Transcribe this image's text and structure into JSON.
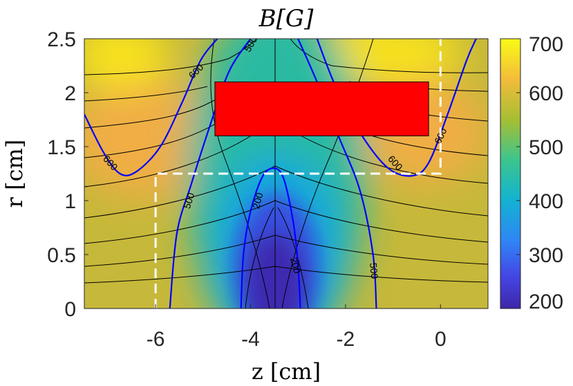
{
  "chart_data": {
    "type": "heatmap",
    "title": "B[G]",
    "xlabel": "z [cm]",
    "ylabel": "r [cm]",
    "xlim": [
      -7.5,
      1
    ],
    "ylim": [
      0,
      2.5
    ],
    "x_ticks": [
      "-6",
      "-4",
      "-2",
      "0"
    ],
    "x_tick_values": [
      -6,
      -4,
      -2,
      0
    ],
    "y_ticks": [
      "0",
      "0.5",
      "1",
      "1.5",
      "2",
      "2.5"
    ],
    "y_tick_values": [
      0,
      0.5,
      1,
      1.5,
      2,
      2.5
    ],
    "colormap": "parula",
    "colorbar": {
      "range": [
        200,
        700
      ],
      "ticks": [
        "200",
        "300",
        "400",
        "500",
        "600",
        "700"
      ],
      "tick_values": [
        200,
        300,
        400,
        500,
        600,
        700
      ]
    },
    "contours": [
      {
        "level": 200,
        "label": "200",
        "color": "#0000ff",
        "path": [
          [
            -4.2,
            0
          ],
          [
            -4.15,
            0.5
          ],
          [
            -4.0,
            0.9
          ],
          [
            -3.75,
            1.22
          ],
          [
            -3.5,
            1.3
          ],
          [
            -3.3,
            1.2
          ],
          [
            -3.1,
            0.8
          ],
          [
            -3.0,
            0.4
          ],
          [
            -2.95,
            0
          ]
        ],
        "labels": [
          {
            "text": "200",
            "x": -3.85,
            "y": 1.0,
            "rotation": -75
          },
          {
            "text": "200",
            "x": -3.05,
            "y": 0.4,
            "rotation": 75
          }
        ]
      },
      {
        "level": 500,
        "label": "500",
        "color": "#0000ff",
        "path": [
          [
            -5.7,
            0
          ],
          [
            -5.55,
            0.7
          ],
          [
            -5.25,
            1.15
          ],
          [
            -4.85,
            1.7
          ],
          [
            -4.45,
            2.2
          ],
          [
            -4.0,
            2.5
          ]
        ],
        "labels": [
          {
            "text": "500",
            "x": -5.3,
            "y": 1.0,
            "rotation": -72
          }
        ]
      },
      {
        "level": 500,
        "label": "500",
        "color": "#0000ff",
        "path": [
          [
            -3.0,
            2.5
          ],
          [
            -2.6,
            2.1
          ],
          [
            -2.15,
            1.6
          ],
          [
            -1.7,
            1.1
          ],
          [
            -1.42,
            0.5
          ],
          [
            -1.35,
            0
          ]
        ],
        "labels": [
          {
            "text": "500",
            "x": -1.4,
            "y": 0.35,
            "rotation": 85
          }
        ]
      },
      {
        "level": 500,
        "label": "500",
        "color": "#0000ff",
        "path": [
          [
            -4.15,
            2.5
          ],
          [
            -3.95,
            2.62
          ]
        ],
        "labels": [
          {
            "text": "500",
            "x": -4.0,
            "y": 2.45,
            "rotation": -60
          }
        ]
      },
      {
        "level": 600,
        "label": "600",
        "color": "#0000ff",
        "path": [
          [
            -7.5,
            1.8
          ],
          [
            -7.1,
            1.45
          ],
          [
            -6.75,
            1.25
          ],
          [
            -6.4,
            1.27
          ],
          [
            -5.9,
            1.5
          ],
          [
            -5.45,
            1.9
          ],
          [
            -5.05,
            2.3
          ],
          [
            -4.7,
            2.5
          ]
        ],
        "labels": [
          {
            "text": "600",
            "x": -6.95,
            "y": 1.35,
            "rotation": 48
          },
          {
            "text": "600",
            "x": -5.15,
            "y": 2.2,
            "rotation": -45
          }
        ]
      },
      {
        "level": 600,
        "label": "600",
        "color": "#0000ff",
        "path": [
          [
            -2.6,
            2.5
          ],
          [
            -2.2,
            2.05
          ],
          [
            -1.65,
            1.6
          ],
          [
            -1.1,
            1.3
          ],
          [
            -0.6,
            1.23
          ],
          [
            -0.25,
            1.35
          ],
          [
            0.15,
            1.8
          ],
          [
            0.55,
            2.3
          ],
          [
            0.75,
            2.5
          ]
        ],
        "labels": [
          {
            "text": "600",
            "x": -0.95,
            "y": 1.35,
            "rotation": 48
          },
          {
            "text": "600",
            "x": 0.0,
            "y": 1.6,
            "rotation": -65
          }
        ]
      }
    ],
    "annotations": [
      {
        "type": "rectangle",
        "fill": "#ff0000",
        "z_range": [
          -4.75,
          -0.25
        ],
        "r_range": [
          1.6,
          2.1
        ]
      },
      {
        "type": "dashed_boundary",
        "color": "#ffffff",
        "path": [
          [
            -6,
            0
          ],
          [
            -6,
            1.25
          ],
          [
            0,
            1.25
          ],
          [
            0,
            2.5
          ]
        ]
      }
    ]
  }
}
